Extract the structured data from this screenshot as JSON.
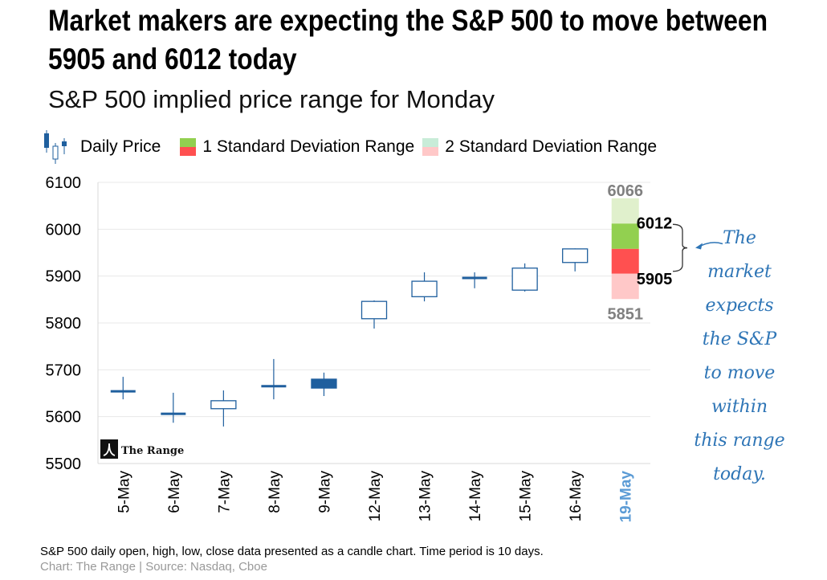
{
  "title": "Market makers are expecting the S&P 500 to move between 5905 and 6012 today",
  "subtitle": "S&P 500 implied price range for Monday",
  "legend": [
    {
      "label": "Daily Price"
    },
    {
      "label": "1 Standard Deviation Range"
    },
    {
      "label": "2 Standard Deviation Range"
    }
  ],
  "colors": {
    "candle": "#1f5f9e",
    "sd1_up": "#92d050",
    "sd1_down": "#ff5050",
    "sd2_up": "#e0f0cc",
    "sd2_down": "#ffc8c8",
    "highlight": "#5b9bd5",
    "annotation": "#2e75b6"
  },
  "watermark": "The Range",
  "annotation": [
    "The",
    "market",
    "expects",
    "the S&P",
    "to move",
    "within",
    "this range",
    "today."
  ],
  "footnote": "S&P 500 daily open, high, low, close data presented as a candle chart. Time period is 10 days.",
  "source": "Chart: The Range | Source: Nasdaq, Cboe",
  "chart_data": {
    "type": "candlestick",
    "ylim": [
      5500,
      6100
    ],
    "yticks": [
      "5500",
      "5600",
      "5700",
      "5800",
      "5900",
      "6000",
      "6100"
    ],
    "categories": [
      "5-May",
      "6-May",
      "7-May",
      "8-May",
      "9-May",
      "12-May",
      "13-May",
      "14-May",
      "15-May",
      "16-May",
      "19-May"
    ],
    "candles": [
      {
        "o": 5654,
        "h": 5685,
        "l": 5637,
        "c": 5654
      },
      {
        "o": 5606,
        "h": 5651,
        "l": 5587,
        "c": 5606
      },
      {
        "o": 5617,
        "h": 5656,
        "l": 5579,
        "c": 5634
      },
      {
        "o": 5665,
        "h": 5723,
        "l": 5637,
        "c": 5665
      },
      {
        "o": 5680,
        "h": 5694,
        "l": 5644,
        "c": 5661
      },
      {
        "o": 5809,
        "h": 5848,
        "l": 5788,
        "c": 5846
      },
      {
        "o": 5856,
        "h": 5908,
        "l": 5846,
        "c": 5889
      },
      {
        "o": 5896,
        "h": 5908,
        "l": 5874,
        "c": 5896
      },
      {
        "o": 5870,
        "h": 5927,
        "l": 5867,
        "c": 5917
      },
      {
        "o": 5929,
        "h": 5959,
        "l": 5910,
        "c": 5958
      }
    ],
    "range": {
      "sd2_high": 6066,
      "sd1_high": 6012,
      "mid": 5958,
      "sd1_low": 5905,
      "sd2_low": 5851
    },
    "range_labels": [
      "6066",
      "6012",
      "5905",
      "5851"
    ]
  }
}
